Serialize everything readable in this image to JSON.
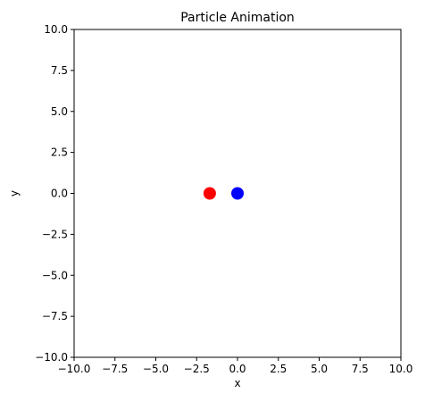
{
  "chart_data": {
    "type": "scatter",
    "title": "Particle Animation",
    "xlabel": "x",
    "ylabel": "y",
    "xlim": [
      -10,
      10
    ],
    "ylim": [
      -10,
      10
    ],
    "grid": false,
    "x_ticks": [
      -10,
      -7.5,
      -5,
      -2.5,
      0,
      2.5,
      5,
      7.5,
      10
    ],
    "x_tick_labels": [
      "−10.0",
      "−7.5",
      "−5.0",
      "−2.5",
      "0.0",
      "2.5",
      "5.0",
      "7.5",
      "10.0"
    ],
    "y_ticks": [
      -10,
      -7.5,
      -5,
      -2.5,
      0,
      2.5,
      5,
      7.5,
      10
    ],
    "y_tick_labels": [
      "−10.0",
      "−7.5",
      "−5.0",
      "−2.5",
      "0.0",
      "2.5",
      "5.0",
      "7.5",
      "10.0"
    ],
    "series": [
      {
        "points": [
          {
            "x": -1.7,
            "y": 0
          }
        ],
        "color": "#ff0000"
      },
      {
        "points": [
          {
            "x": 0,
            "y": 0
          }
        ],
        "color": "#0000ff"
      }
    ]
  }
}
